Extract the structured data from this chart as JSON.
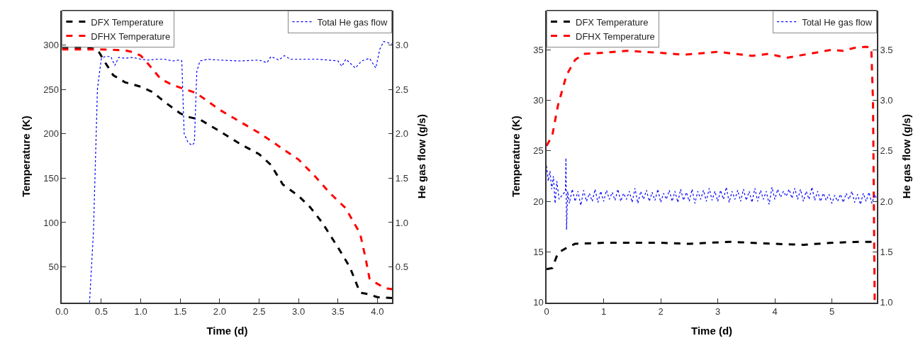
{
  "chart_data": [
    {
      "type": "line",
      "xlabel": "Time (d)",
      "ylabel": "Temperature (K)",
      "y2label": "He gas flow (g/s)",
      "xlim": [
        0,
        4.19
      ],
      "ylim": [
        10,
        339
      ],
      "y2lim": [
        0.1,
        3.39
      ],
      "xticks": [
        {
          "value": 0,
          "label": "0.0"
        },
        {
          "value": 0.5,
          "label": "0.5"
        },
        {
          "value": 1,
          "label": "1.0"
        },
        {
          "value": 1.5,
          "label": "1.5"
        },
        {
          "value": 2,
          "label": "2.0"
        },
        {
          "value": 2.5,
          "label": "2.5"
        },
        {
          "value": 3,
          "label": "3.0"
        },
        {
          "value": 3.5,
          "label": "3.5"
        },
        {
          "value": 4,
          "label": "4.0"
        }
      ],
      "yticks": [
        50,
        100,
        150,
        200,
        250,
        300
      ],
      "y2ticks": [
        0.5,
        {
          "value": 1,
          "label": "1.0"
        },
        1.5,
        {
          "value": 2,
          "label": "2.0"
        },
        2.5,
        {
          "value": 3,
          "label": "3.0"
        }
      ],
      "legend": "top left",
      "marker": "none",
      "series": [
        {
          "name": "DFX Temperature",
          "color": "#000000",
          "line_style": "dashed",
          "x": [
            0,
            0.3,
            0.45,
            0.55,
            0.65,
            0.8,
            1.0,
            1.15,
            1.3,
            1.5,
            1.6,
            1.75,
            2.0,
            2.25,
            2.5,
            2.65,
            2.8,
            3.0,
            3.15,
            3.3,
            3.5,
            3.65,
            3.78,
            3.85,
            4.0,
            4.19
          ],
          "values": [
            297,
            297,
            295,
            280,
            266,
            258,
            253,
            247,
            236,
            223,
            219,
            216,
            203,
            189,
            177,
            165,
            143,
            130,
            117,
            100,
            72,
            50,
            21,
            20,
            16,
            15
          ]
        },
        {
          "name": "DFHX Temperature",
          "color": "#ff0000",
          "line_style": "dashed",
          "x": [
            0,
            0.5,
            0.8,
            0.9,
            1.0,
            1.1,
            1.25,
            1.4,
            1.5,
            1.7,
            2.0,
            2.25,
            2.5,
            2.75,
            3.0,
            3.2,
            3.4,
            3.6,
            3.7,
            3.78,
            3.85,
            3.9,
            4.0,
            4.1,
            4.19
          ],
          "values": [
            295,
            295,
            294,
            292,
            288,
            278,
            262,
            255,
            252,
            246,
            227,
            214,
            201,
            186,
            171,
            153,
            133,
            116,
            100,
            88,
            60,
            37,
            31,
            26,
            25
          ]
        },
        {
          "name": "Total He gas flow",
          "color": "#0000ff",
          "line_style": "dotted",
          "axis": "y2",
          "x": [
            0.35,
            0.4,
            0.45,
            0.5,
            0.55,
            0.62,
            0.67,
            0.72,
            0.8,
            0.9,
            1.0,
            1.1,
            1.2,
            1.3,
            1.4,
            1.48,
            1.52,
            1.55,
            1.6,
            1.65,
            1.68,
            1.71,
            1.75,
            1.85,
            2.0,
            2.25,
            2.5,
            2.6,
            2.65,
            2.75,
            2.82,
            2.9,
            3.0,
            3.25,
            3.5,
            3.55,
            3.6,
            3.65,
            3.72,
            3.8,
            3.9,
            3.98,
            4.03,
            4.08,
            4.19
          ],
          "values": [
            0.1,
            0.9,
            2.5,
            2.85,
            2.87,
            2.87,
            2.77,
            2.86,
            2.85,
            2.86,
            2.84,
            2.83,
            2.84,
            2.84,
            2.82,
            2.83,
            2.82,
            2.0,
            1.9,
            1.87,
            1.9,
            2.7,
            2.82,
            2.84,
            2.83,
            2.82,
            2.83,
            2.8,
            2.87,
            2.83,
            2.88,
            2.84,
            2.84,
            2.84,
            2.82,
            2.76,
            2.84,
            2.8,
            2.74,
            2.82,
            2.85,
            2.74,
            2.95,
            3.04,
            3.01
          ]
        }
      ]
    },
    {
      "type": "line",
      "xlabel": "Time (d)",
      "ylabel": "Temperature (K)",
      "y2label": "He gas flow (g/s)",
      "xlim": [
        0,
        5.79
      ],
      "ylim": [
        10,
        38.9
      ],
      "y2lim": [
        1.0,
        3.89
      ],
      "xticks": [
        0,
        1,
        2,
        3,
        4,
        5
      ],
      "yticks": [
        10,
        15,
        20,
        25,
        30,
        35
      ],
      "y2ticks": [
        {
          "value": 1,
          "label": "1.0"
        },
        1.5,
        {
          "value": 2,
          "label": "2.0"
        },
        2.5,
        {
          "value": 3,
          "label": "3.0"
        },
        3.5
      ],
      "legend": "top left",
      "marker": "none",
      "series": [
        {
          "name": "DFX Temperature",
          "color": "#000000",
          "line_style": "dashed",
          "x": [
            0,
            0.1,
            0.2,
            0.35,
            0.5,
            1.0,
            2.0,
            2.5,
            3.2,
            4.0,
            4.5,
            5.0,
            5.5,
            5.79
          ],
          "values": [
            13.3,
            13.4,
            14.9,
            15.4,
            15.8,
            15.9,
            15.9,
            15.8,
            16.0,
            15.8,
            15.7,
            15.9,
            16.0,
            16.0
          ]
        },
        {
          "name": "DFHX Temperature",
          "color": "#ff0000",
          "line_style": "dashed",
          "x": [
            0,
            0.1,
            0.2,
            0.35,
            0.5,
            0.65,
            1.0,
            1.4,
            2.0,
            2.4,
            3.0,
            3.6,
            3.9,
            4.2,
            4.5,
            5.0,
            5.2,
            5.4,
            5.6,
            5.69,
            5.72,
            5.75
          ],
          "values": [
            25.5,
            26.5,
            29.5,
            32.5,
            34.0,
            34.6,
            34.7,
            34.9,
            34.7,
            34.5,
            34.8,
            34.4,
            34.6,
            34.2,
            34.5,
            35.0,
            34.9,
            35.2,
            35.3,
            35.2,
            30,
            10
          ]
        },
        {
          "name": "Total He gas flow",
          "color": "#0000ff",
          "line_style": "dotted",
          "axis": "y2",
          "x": [
            0,
            0.03,
            0.06,
            0.09,
            0.12,
            0.15,
            0.18,
            0.22,
            0.27,
            0.33,
            0.34,
            0.35,
            0.37,
            0.4,
            0.45,
            0.5,
            0.55,
            0.6,
            0.65,
            0.7,
            0.75,
            0.8,
            0.85,
            0.9,
            0.95,
            1.0,
            1.05,
            1.1,
            1.15,
            1.2,
            1.25,
            1.3,
            1.35,
            1.4,
            1.45,
            1.5,
            1.55,
            1.6,
            1.65,
            1.7,
            1.75,
            1.8,
            1.85,
            1.9,
            1.95,
            2.0,
            2.05,
            2.1,
            2.15,
            2.2,
            2.25,
            2.3,
            2.35,
            2.4,
            2.45,
            2.5,
            2.55,
            2.6,
            2.65,
            2.7,
            2.75,
            2.8,
            2.85,
            2.9,
            2.95,
            3.0,
            3.05,
            3.1,
            3.15,
            3.2,
            3.25,
            3.3,
            3.35,
            3.4,
            3.45,
            3.5,
            3.55,
            3.6,
            3.65,
            3.7,
            3.75,
            3.8,
            3.85,
            3.9,
            3.95,
            4.0,
            4.05,
            4.1,
            4.15,
            4.2,
            4.25,
            4.3,
            4.35,
            4.4,
            4.45,
            4.5,
            4.55,
            4.6,
            4.65,
            4.7,
            4.75,
            4.8,
            4.85,
            4.9,
            4.95,
            5.0,
            5.05,
            5.1,
            5.15,
            5.2,
            5.25,
            5.3,
            5.35,
            5.4,
            5.45,
            5.5,
            5.55,
            5.6,
            5.65,
            5.7,
            5.75,
            5.79
          ],
          "values": [
            2.35,
            2.2,
            2.3,
            2.12,
            2.25,
            1.98,
            2.2,
            2.02,
            2.06,
            2.1,
            2.43,
            1.72,
            2.1,
            1.98,
            2.12,
            2.0,
            2.1,
            1.96,
            2.11,
            2.0,
            2.08,
            2.0,
            2.12,
            1.99,
            2.1,
            2.0,
            2.11,
            2.02,
            2.09,
            2.01,
            2.12,
            2.0,
            2.08,
            2.02,
            2.1,
            1.99,
            2.13,
            1.98,
            2.1,
            2.02,
            2.11,
            2.0,
            2.09,
            2.01,
            2.12,
            1.99,
            2.08,
            2.02,
            2.11,
            2.0,
            2.1,
            1.99,
            2.12,
            2.01,
            2.09,
            2.0,
            2.12,
            1.98,
            2.1,
            2.02,
            2.11,
            2.0,
            2.13,
            2.01,
            2.1,
            2.0,
            2.11,
            2.02,
            2.14,
            1.99,
            2.1,
            2.02,
            2.11,
            2.0,
            2.12,
            2.01,
            2.1,
            1.99,
            2.13,
            2.0,
            2.11,
            2.02,
            2.1,
            1.97,
            2.14,
            2.02,
            2.12,
            2.04,
            2.1,
            2.05,
            2.12,
            2.03,
            2.13,
            2.02,
            2.12,
            2.0,
            2.1,
            2.02,
            2.14,
            2.01,
            2.1,
            2.0,
            2.08,
            2.01,
            2.07,
            1.98,
            2.06,
            2.0,
            2.07,
            1.99,
            2.08,
            2.02,
            2.1,
            1.99,
            2.07,
            1.97,
            2.08,
            2.0,
            2.09,
            1.98,
            2.07,
            2.02
          ]
        }
      ]
    }
  ]
}
